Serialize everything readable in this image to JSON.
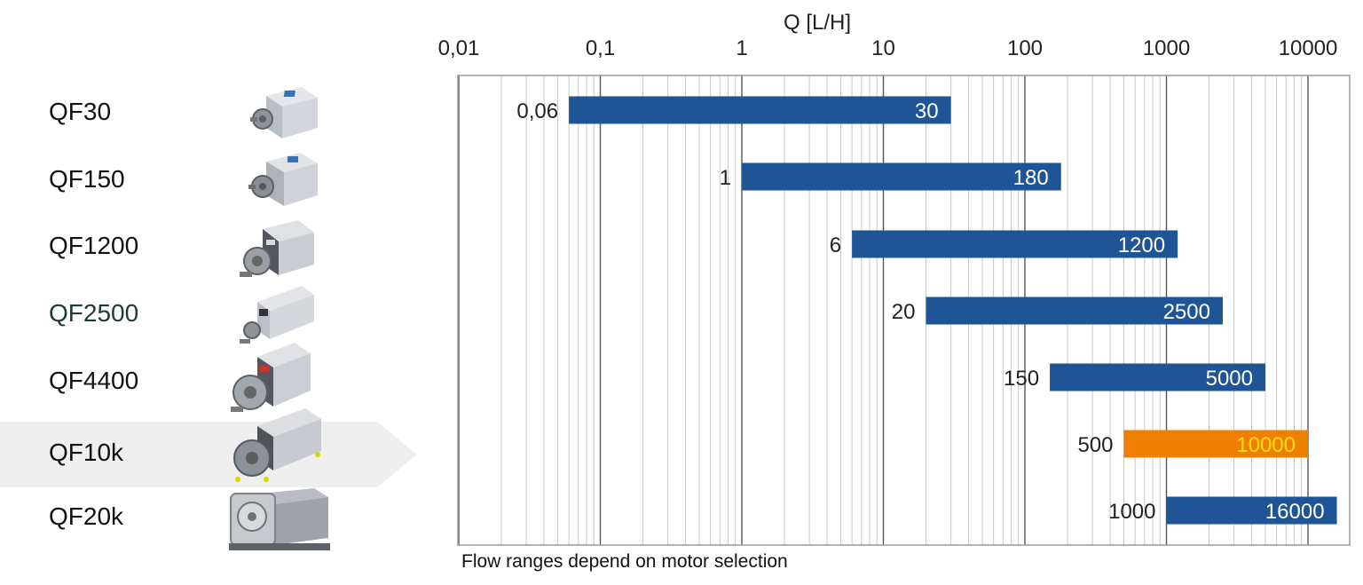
{
  "models": [
    {
      "name": "QF30"
    },
    {
      "name": "QF150"
    },
    {
      "name": "QF1200"
    },
    {
      "name": "QF2500"
    },
    {
      "name": "QF4400"
    },
    {
      "name": "QF10k",
      "highlighted": true
    },
    {
      "name": "QF20k"
    }
  ],
  "footnote": "Flow ranges depend on motor selection",
  "colors": {
    "bar": "#1f5596",
    "highlight_bar": "#ef7f00",
    "highlight_text": "#ffe100",
    "highlight_band": "#efefef",
    "grid_major": "#555555",
    "grid_minor": "#c8c8c8"
  },
  "chart_data": {
    "type": "bar",
    "orientation": "horizontal",
    "x_label": "Q [L/H]",
    "x_scale": "log",
    "x_range": [
      0.01,
      20000
    ],
    "x_ticks": [
      {
        "value": 0.01,
        "label": "0,01"
      },
      {
        "value": 0.1,
        "label": "0,1"
      },
      {
        "value": 1,
        "label": "1"
      },
      {
        "value": 10,
        "label": "10"
      },
      {
        "value": 100,
        "label": "100"
      },
      {
        "value": 1000,
        "label": "1000"
      },
      {
        "value": 10000,
        "label": "10000"
      }
    ],
    "grid": true,
    "categories": [
      "QF30",
      "QF150",
      "QF1200",
      "QF2500",
      "QF4400",
      "QF10k",
      "QF20k"
    ],
    "ranges": [
      {
        "category": "QF30",
        "min": 0.06,
        "max": 30,
        "min_label": "0,06",
        "max_label": "30"
      },
      {
        "category": "QF150",
        "min": 1,
        "max": 180,
        "min_label": "1",
        "max_label": "180"
      },
      {
        "category": "QF1200",
        "min": 6,
        "max": 1200,
        "min_label": "6",
        "max_label": "1200"
      },
      {
        "category": "QF2500",
        "min": 20,
        "max": 2500,
        "min_label": "20",
        "max_label": "2500"
      },
      {
        "category": "QF4400",
        "min": 150,
        "max": 5000,
        "min_label": "150",
        "max_label": "5000"
      },
      {
        "category": "QF10k",
        "min": 500,
        "max": 10000,
        "min_label": "500",
        "max_label": "10000",
        "highlighted": true
      },
      {
        "category": "QF20k",
        "min": 1000,
        "max": 16000,
        "min_label": "1000",
        "max_label": "16000"
      }
    ]
  }
}
